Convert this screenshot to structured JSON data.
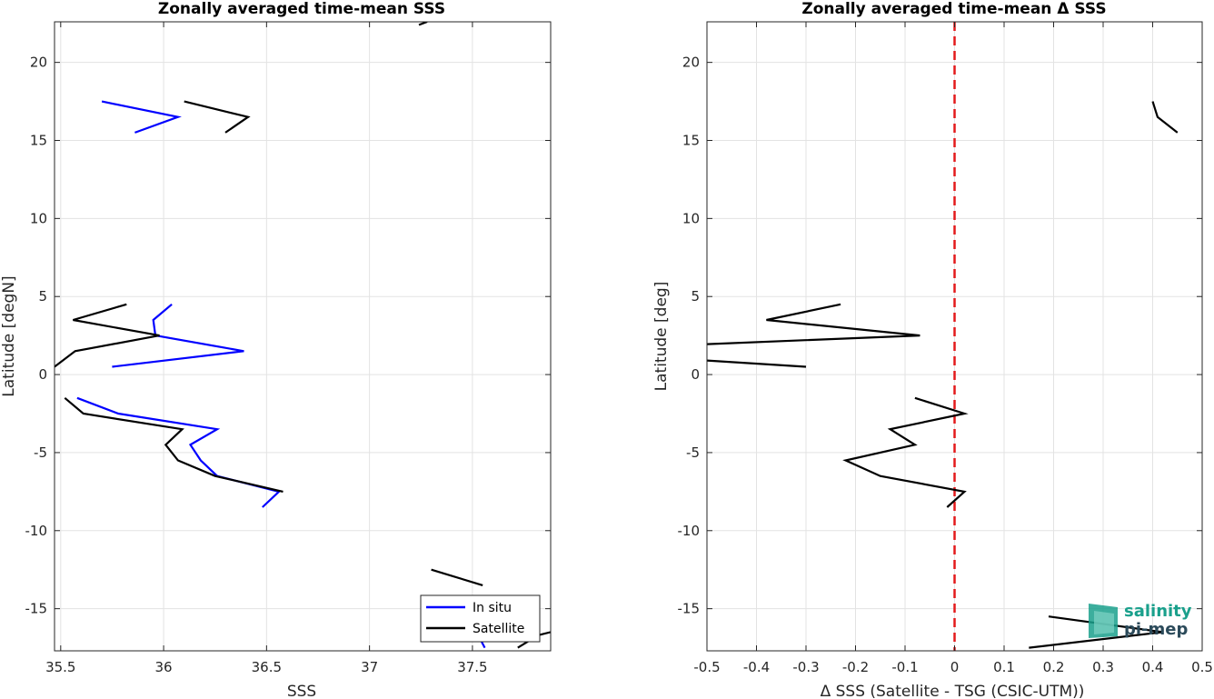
{
  "chart_data": [
    {
      "type": "line",
      "title": "Zonally averaged time-mean SSS",
      "xlabel": "SSS",
      "ylabel": "Latitude [degN]",
      "xlim": [
        35.47,
        37.88
      ],
      "ylim": [
        -17.7,
        22.6
      ],
      "xticks": [
        35.5,
        36,
        36.5,
        37,
        37.5
      ],
      "xtick_labels": [
        "35.5",
        "36",
        "36.5",
        "37",
        "37.5"
      ],
      "yticks": [
        -15,
        -10,
        -5,
        0,
        5,
        10,
        15,
        20
      ],
      "ytick_labels": [
        "-15",
        "-10",
        "-5",
        "0",
        "5",
        "10",
        "15",
        "20"
      ],
      "grid": true,
      "legend_position": "bottom-right",
      "series": [
        {
          "name": "In situ",
          "color": "#0000ff",
          "segments": [
            [
              [
                35.7,
                17.5
              ],
              [
                36.07,
                16.5
              ],
              [
                35.86,
                15.5
              ]
            ],
            [
              [
                36.04,
                4.5
              ],
              [
                35.95,
                3.5
              ],
              [
                35.96,
                2.5
              ],
              [
                36.39,
                1.5
              ],
              [
                35.75,
                0.5
              ]
            ],
            [
              [
                35.58,
                -1.5
              ],
              [
                35.78,
                -2.5
              ],
              [
                36.26,
                -3.5
              ],
              [
                36.13,
                -4.5
              ],
              [
                36.18,
                -5.5
              ],
              [
                36.26,
                -6.5
              ],
              [
                36.56,
                -7.5
              ],
              [
                36.48,
                -8.5
              ]
            ],
            [
              [
                37.52,
                -16.5
              ],
              [
                37.56,
                -17.5
              ]
            ]
          ]
        },
        {
          "name": "Satellite",
          "color": "#000000",
          "segments": [
            [
              [
                37.24,
                22.4
              ],
              [
                37.28,
                22.6
              ]
            ],
            [
              [
                36.1,
                17.5
              ],
              [
                36.41,
                16.5
              ],
              [
                36.3,
                15.5
              ]
            ],
            [
              [
                35.82,
                4.5
              ],
              [
                35.56,
                3.5
              ],
              [
                35.98,
                2.5
              ],
              [
                35.57,
                1.5
              ],
              [
                35.47,
                0.5
              ]
            ],
            [
              [
                35.52,
                -1.5
              ],
              [
                35.61,
                -2.5
              ],
              [
                36.09,
                -3.5
              ],
              [
                36.01,
                -4.5
              ],
              [
                36.07,
                -5.5
              ],
              [
                36.25,
                -6.5
              ],
              [
                36.58,
                -7.5
              ]
            ],
            [
              [
                37.3,
                -12.5
              ],
              [
                37.55,
                -13.5
              ]
            ],
            [
              [
                37.72,
                -17.5
              ],
              [
                37.82,
                -16.7
              ],
              [
                37.88,
                -16.5
              ]
            ]
          ]
        }
      ]
    },
    {
      "type": "line",
      "title": "Zonally averaged time-mean Δ SSS",
      "xlabel": "Δ SSS (Satellite - TSG (CSIC-UTM))",
      "ylabel": "Latitude [deg]",
      "xlim": [
        -0.5,
        0.5
      ],
      "ylim": [
        -17.7,
        22.6
      ],
      "xticks": [
        -0.5,
        -0.4,
        -0.3,
        -0.2,
        -0.1,
        0,
        0.1,
        0.2,
        0.3,
        0.4,
        0.5
      ],
      "xtick_labels": [
        "-0.5",
        "-0.4",
        "-0.3",
        "-0.2",
        "-0.1",
        "0",
        "0.1",
        "0.2",
        "0.3",
        "0.4",
        "0.5"
      ],
      "yticks": [
        -15,
        -10,
        -5,
        0,
        5,
        10,
        15,
        20
      ],
      "ytick_labels": [
        "-15",
        "-10",
        "-5",
        "0",
        "5",
        "10",
        "15",
        "20"
      ],
      "grid": true,
      "reference_line": {
        "x": 0,
        "color": "#e31a1c",
        "style": "dashed"
      },
      "series": [
        {
          "name": "",
          "color": "#000000",
          "segments": [
            [
              [
                0.4,
                17.5
              ],
              [
                0.41,
                16.5
              ],
              [
                0.45,
                15.5
              ]
            ],
            [
              [
                -0.23,
                4.5
              ],
              [
                -0.38,
                3.5
              ],
              [
                -0.07,
                2.5
              ],
              [
                -0.5,
                1.95
              ]
            ],
            [
              [
                -0.5,
                0.9
              ],
              [
                -0.3,
                0.5
              ]
            ],
            [
              [
                -0.08,
                -1.5
              ],
              [
                0.02,
                -2.5
              ],
              [
                -0.13,
                -3.5
              ],
              [
                -0.08,
                -4.5
              ],
              [
                -0.22,
                -5.5
              ],
              [
                -0.15,
                -6.5
              ],
              [
                0.02,
                -7.5
              ],
              [
                -0.015,
                -8.5
              ]
            ],
            [
              [
                0.19,
                -15.5
              ],
              [
                0.42,
                -16.5
              ],
              [
                0.15,
                -17.5
              ]
            ]
          ]
        }
      ]
    }
  ],
  "legend": {
    "items": [
      {
        "label": "In situ",
        "color": "#0000ff"
      },
      {
        "label": "Satellite",
        "color": "#000000"
      }
    ]
  },
  "logo": {
    "line1": "salinity",
    "line2": "pi-mep",
    "color": "#1aa08c"
  }
}
